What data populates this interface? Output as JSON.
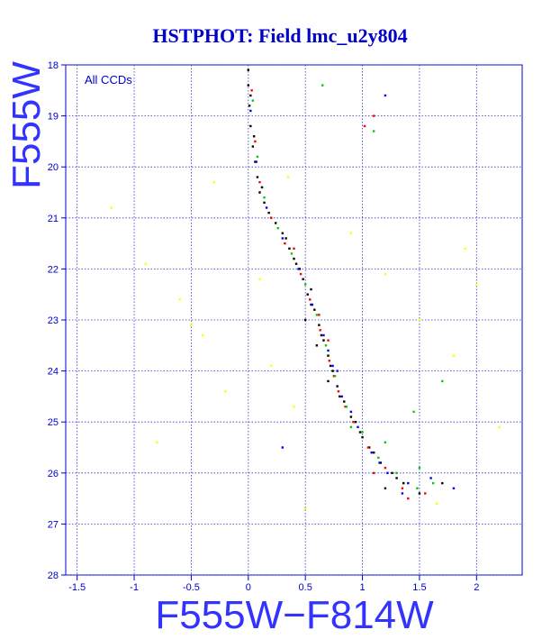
{
  "chart_data": {
    "type": "scatter",
    "title": "HSTPHOT: Field lmc_u2y804",
    "xlabel": "F555W−F814W",
    "ylabel": "F555W",
    "legend": "All CCDs",
    "xlim": [
      -1.6,
      2.4
    ],
    "ylim": [
      28,
      18
    ],
    "y_inverted": true,
    "grid": true,
    "x_ticks": [
      -1.5,
      -1,
      -0.5,
      0,
      0.5,
      1,
      1.5,
      2
    ],
    "x_tick_labels": [
      "-1.5",
      "-1",
      "-0.5",
      "0",
      "0.5",
      "1",
      "1.5",
      "2"
    ],
    "y_ticks": [
      18,
      19,
      20,
      21,
      22,
      23,
      24,
      25,
      26,
      27,
      28
    ],
    "y_tick_labels": [
      "18",
      "19",
      "20",
      "21",
      "22",
      "23",
      "24",
      "25",
      "26",
      "27",
      "28"
    ],
    "series": [
      {
        "color": "#000000",
        "points": [
          [
            0.0,
            18.1
          ],
          [
            0.0,
            18.4
          ],
          [
            0.01,
            18.8
          ],
          [
            0.02,
            19.2
          ],
          [
            0.04,
            19.6
          ],
          [
            0.06,
            19.9
          ],
          [
            0.08,
            20.2
          ],
          [
            0.1,
            20.5
          ],
          [
            0.14,
            20.7
          ],
          [
            0.18,
            20.9
          ],
          [
            0.24,
            21.1
          ],
          [
            0.3,
            21.3
          ],
          [
            0.36,
            21.6
          ],
          [
            0.42,
            21.9
          ],
          [
            0.48,
            22.2
          ],
          [
            0.52,
            22.5
          ],
          [
            0.58,
            22.8
          ],
          [
            0.62,
            23.1
          ],
          [
            0.66,
            23.4
          ],
          [
            0.7,
            23.7
          ],
          [
            0.74,
            24.0
          ],
          [
            0.78,
            24.3
          ],
          [
            0.84,
            24.6
          ],
          [
            0.9,
            24.9
          ],
          [
            0.98,
            25.2
          ],
          [
            1.06,
            25.5
          ],
          [
            1.16,
            25.8
          ],
          [
            1.26,
            26.0
          ],
          [
            1.36,
            26.2
          ],
          [
            0.02,
            18.6
          ],
          [
            0.05,
            19.4
          ],
          [
            0.12,
            20.4
          ],
          [
            0.2,
            21.0
          ],
          [
            0.33,
            21.4
          ],
          [
            0.45,
            22.0
          ],
          [
            0.55,
            22.7
          ],
          [
            0.64,
            23.3
          ],
          [
            0.72,
            23.9
          ],
          [
            0.8,
            24.5
          ],
          [
            0.94,
            25.0
          ],
          [
            1.1,
            25.6
          ],
          [
            1.3,
            26.1
          ],
          [
            0.5,
            23.0
          ],
          [
            0.6,
            23.5
          ],
          [
            0.55,
            22.4
          ],
          [
            0.4,
            21.8
          ],
          [
            0.7,
            24.2
          ],
          [
            1.0,
            25.3
          ],
          [
            1.2,
            26.3
          ],
          [
            1.5,
            26.4
          ],
          [
            1.7,
            26.2
          ]
        ]
      },
      {
        "color": "#ff0000",
        "points": [
          [
            0.03,
            18.5
          ],
          [
            0.06,
            19.5
          ],
          [
            0.1,
            20.3
          ],
          [
            0.2,
            21.0
          ],
          [
            0.32,
            21.5
          ],
          [
            0.46,
            22.1
          ],
          [
            0.54,
            22.6
          ],
          [
            0.63,
            23.2
          ],
          [
            0.71,
            23.8
          ],
          [
            0.79,
            24.4
          ],
          [
            0.92,
            25.0
          ],
          [
            1.05,
            25.5
          ],
          [
            1.2,
            25.9
          ],
          [
            1.35,
            26.3
          ],
          [
            1.55,
            26.4
          ],
          [
            0.62,
            22.9
          ],
          [
            0.7,
            23.4
          ],
          [
            0.85,
            24.7
          ],
          [
            1.1,
            26.0
          ],
          [
            1.4,
            26.5
          ],
          [
            0.75,
            24.1
          ],
          [
            1.02,
            19.2
          ],
          [
            1.1,
            19.0
          ],
          [
            0.4,
            21.6
          ]
        ]
      },
      {
        "color": "#00cc00",
        "points": [
          [
            0.04,
            18.7
          ],
          [
            0.08,
            19.8
          ],
          [
            0.14,
            20.6
          ],
          [
            0.26,
            21.2
          ],
          [
            0.38,
            21.7
          ],
          [
            0.5,
            22.3
          ],
          [
            0.6,
            22.9
          ],
          [
            0.68,
            23.5
          ],
          [
            0.76,
            24.1
          ],
          [
            0.86,
            24.7
          ],
          [
            1.0,
            25.2
          ],
          [
            1.14,
            25.7
          ],
          [
            1.3,
            26.0
          ],
          [
            1.48,
            26.3
          ],
          [
            1.62,
            26.2
          ],
          [
            0.9,
            25.1
          ],
          [
            1.2,
            25.4
          ],
          [
            1.5,
            25.9
          ],
          [
            1.1,
            19.3
          ],
          [
            0.65,
            18.4
          ],
          [
            1.45,
            24.8
          ],
          [
            1.7,
            24.2
          ]
        ]
      },
      {
        "color": "#0000ff",
        "points": [
          [
            0.02,
            18.9
          ],
          [
            0.07,
            19.9
          ],
          [
            0.16,
            20.8
          ],
          [
            0.3,
            21.4
          ],
          [
            0.44,
            22.0
          ],
          [
            0.56,
            22.7
          ],
          [
            0.66,
            23.3
          ],
          [
            0.74,
            23.9
          ],
          [
            0.82,
            24.5
          ],
          [
            0.96,
            25.1
          ],
          [
            1.08,
            25.6
          ],
          [
            1.22,
            26.0
          ],
          [
            1.4,
            26.2
          ],
          [
            1.6,
            26.1
          ],
          [
            1.8,
            26.3
          ],
          [
            0.78,
            24.0
          ],
          [
            0.9,
            24.8
          ],
          [
            1.15,
            25.8
          ],
          [
            1.35,
            26.4
          ],
          [
            0.7,
            23.6
          ],
          [
            1.2,
            18.6
          ],
          [
            0.3,
            25.5
          ]
        ]
      },
      {
        "color": "#ffff00",
        "points": [
          [
            -1.2,
            20.8
          ],
          [
            -0.9,
            21.9
          ],
          [
            -0.6,
            22.6
          ],
          [
            -0.4,
            23.3
          ],
          [
            -0.2,
            24.4
          ],
          [
            0.1,
            22.2
          ],
          [
            0.2,
            23.9
          ],
          [
            0.4,
            24.7
          ],
          [
            0.9,
            21.3
          ],
          [
            1.2,
            22.1
          ],
          [
            1.5,
            23.0
          ],
          [
            1.8,
            23.7
          ],
          [
            2.0,
            22.3
          ],
          [
            2.2,
            25.1
          ],
          [
            -0.3,
            20.3
          ],
          [
            -0.8,
            25.4
          ],
          [
            0.5,
            26.7
          ],
          [
            1.65,
            26.6
          ],
          [
            0.35,
            20.2
          ],
          [
            -0.5,
            23.1
          ],
          [
            1.9,
            21.6
          ]
        ]
      }
    ]
  }
}
